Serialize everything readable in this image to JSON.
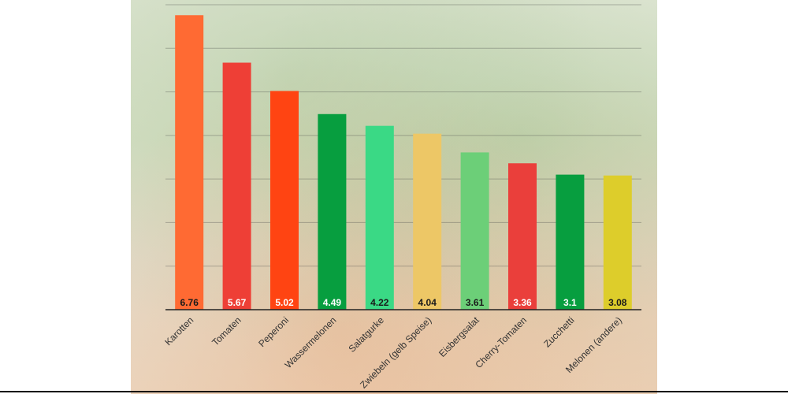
{
  "chart_data": {
    "type": "bar",
    "title": "",
    "xlabel": "",
    "ylabel": "",
    "ylim": [
      0,
      7
    ],
    "grid": true,
    "categories": [
      "Karotten",
      "Tomaten",
      "Peperoni",
      "Wassermelonen",
      "Salatgurke",
      "Zwiebeln (gelb Speise)",
      "Eisbergsalat",
      "Cherry-Tomaten",
      "Zucchetti",
      "Melonen (andere)"
    ],
    "values": [
      6.76,
      5.67,
      5.02,
      4.49,
      4.22,
      4.04,
      3.61,
      3.36,
      3.1,
      3.08
    ],
    "value_labels": [
      "6.76",
      "5.67",
      "5.02",
      "4.49",
      "4.22",
      "4.04",
      "3.61",
      "3.36",
      "3.1",
      "3.08"
    ],
    "colors": [
      "#ff6a33",
      "#ee3f36",
      "#ff4412",
      "#079e3f",
      "#3ad985",
      "#edc766",
      "#6ccf78",
      "#ea3f3b",
      "#079e3f",
      "#ddcd2b"
    ],
    "value_label_colors": [
      "#1a1a1a",
      "#ffffff",
      "#ffffff",
      "#ffffff",
      "#1a1a1a",
      "#1a1a1a",
      "#1a1a1a",
      "#ffffff",
      "#ffffff",
      "#1a1a1a"
    ]
  }
}
